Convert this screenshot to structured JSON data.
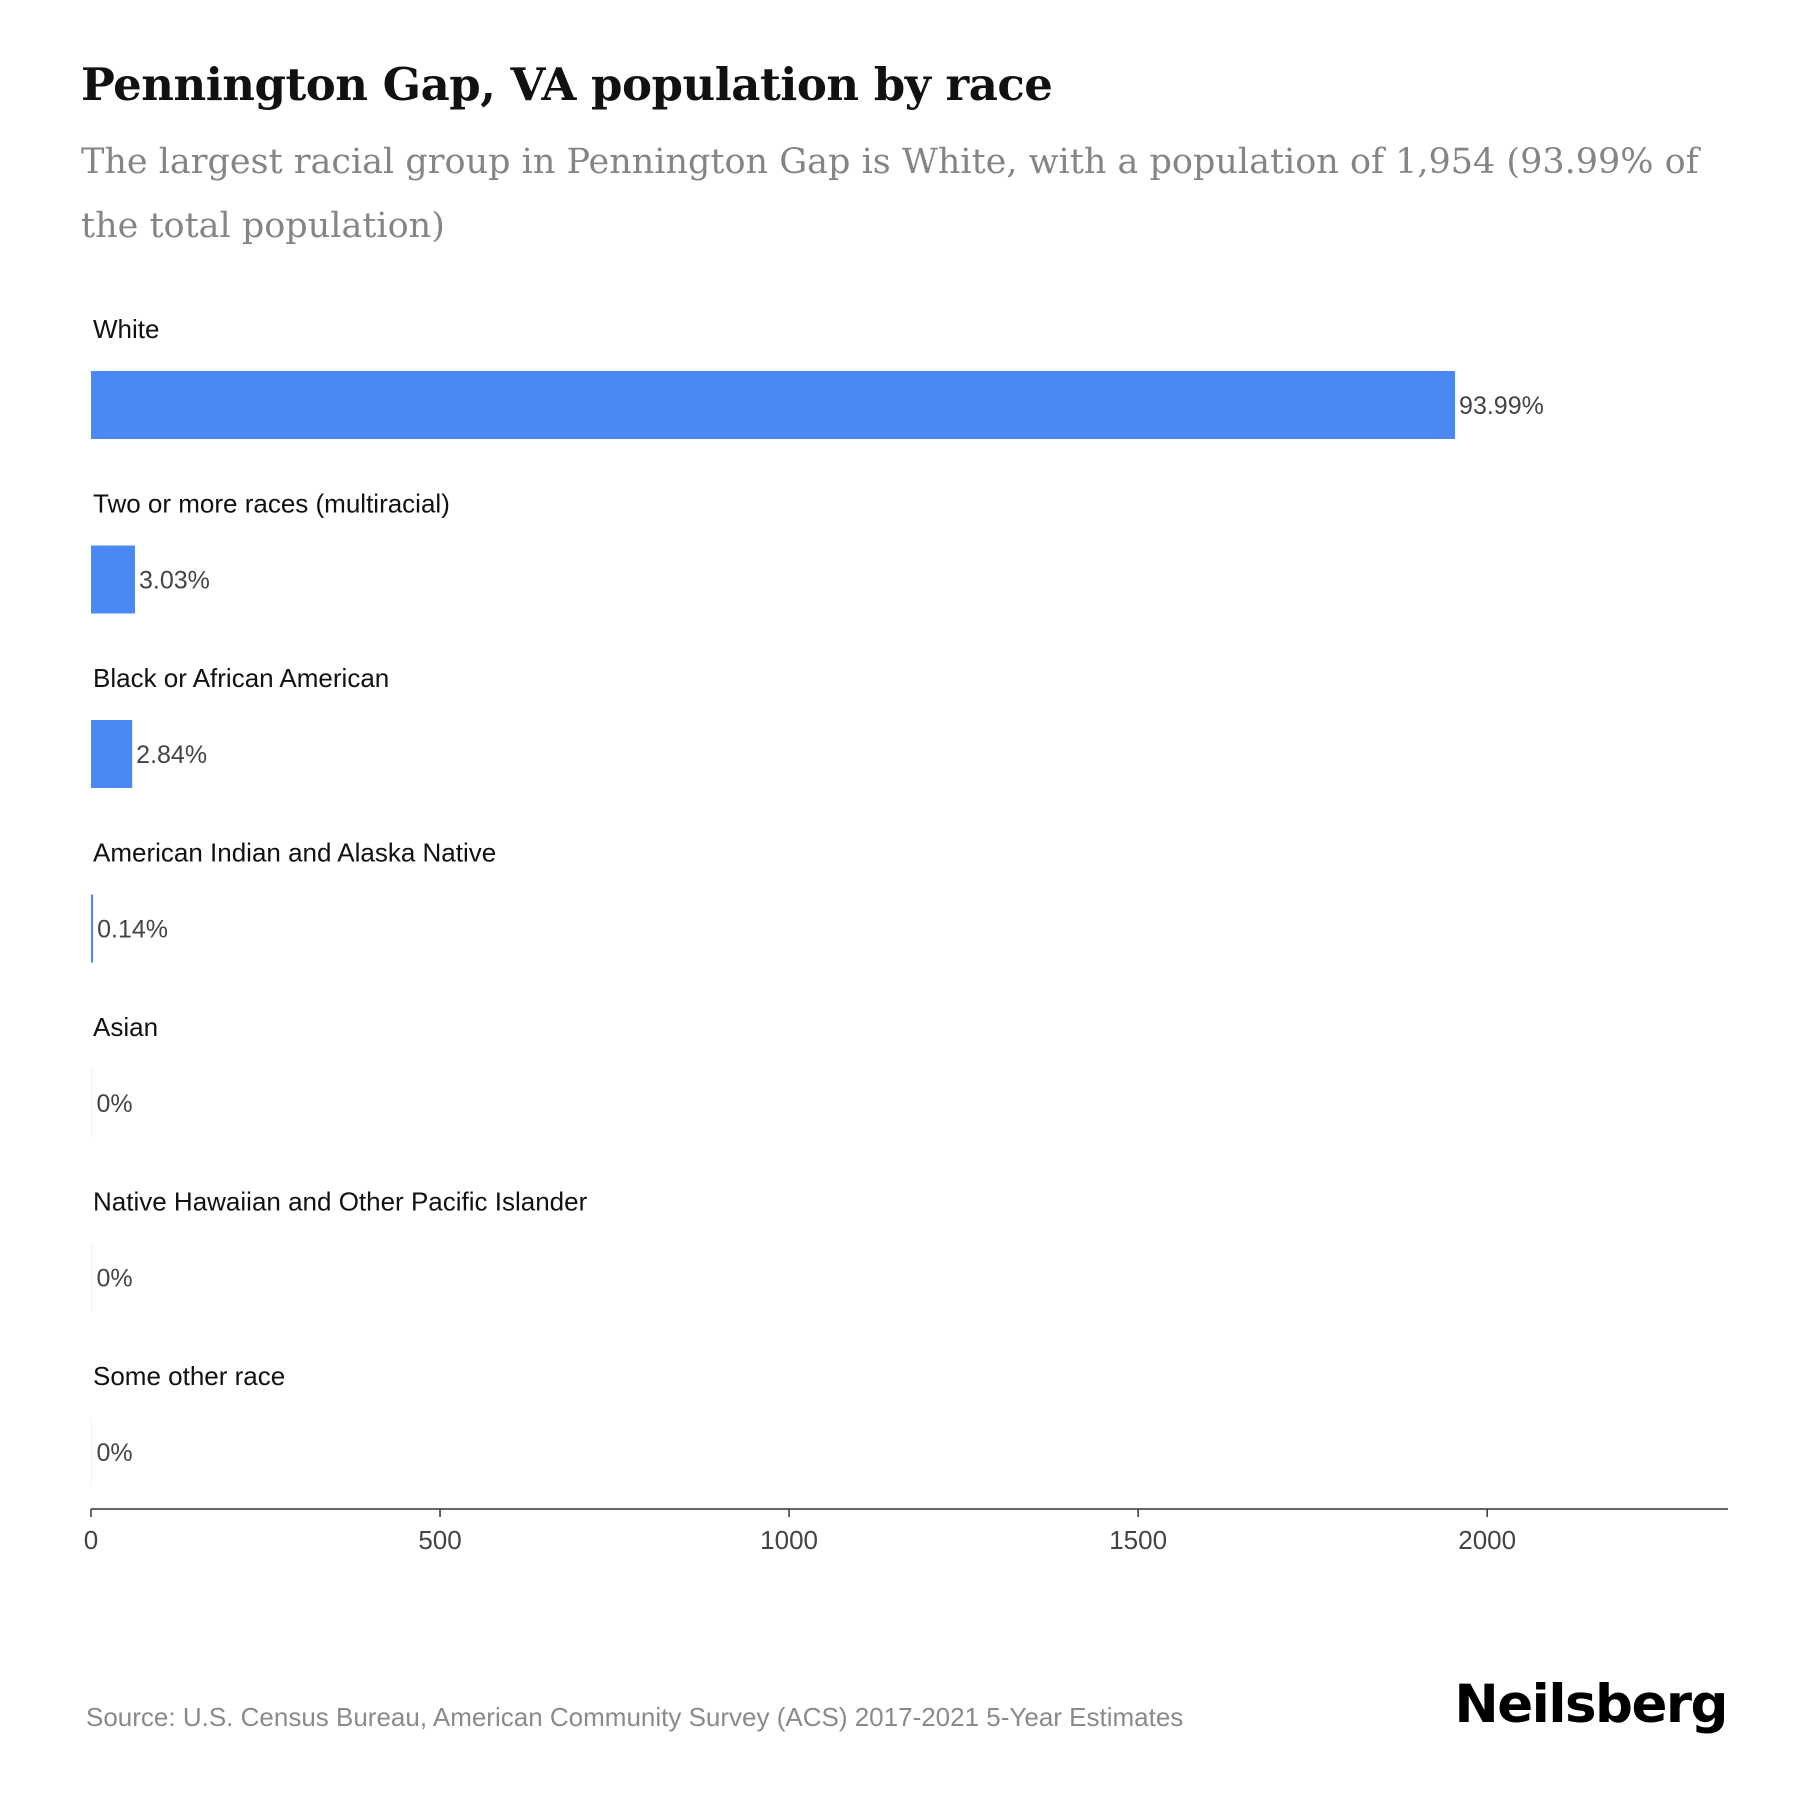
{
  "title": "Pennington Gap, VA population by race",
  "subtitle": "The largest racial group in Pennington Gap is White, with a population of 1,954 (93.99% of the total population)",
  "source": "Source: U.S. Census Bureau, American Community Survey (ACS) 2017-2021 5-Year Estimates",
  "brand": "Neilsberg",
  "colors": {
    "bar": "#4a89f3",
    "axis": "#333333",
    "category_label": "#111111",
    "value_label": "#444444",
    "tick_label": "#444444"
  },
  "chart_data": {
    "type": "bar",
    "orientation": "horizontal",
    "categories": [
      "White",
      "Two or more races (multiracial)",
      "Black or African American",
      "American Indian and Alaska Native",
      "Asian",
      "Native Hawaiian and Other Pacific Islander",
      "Some other race"
    ],
    "values": [
      1954,
      63,
      59,
      3,
      0,
      0,
      0
    ],
    "data_labels": [
      "93.99%",
      "3.03%",
      "2.84%",
      "0.14%",
      "0%",
      "0%",
      "0%"
    ],
    "xlim": [
      0,
      2345
    ],
    "xticks": [
      0,
      500,
      1000,
      1500,
      2000
    ],
    "grid": false,
    "legend": "none"
  }
}
